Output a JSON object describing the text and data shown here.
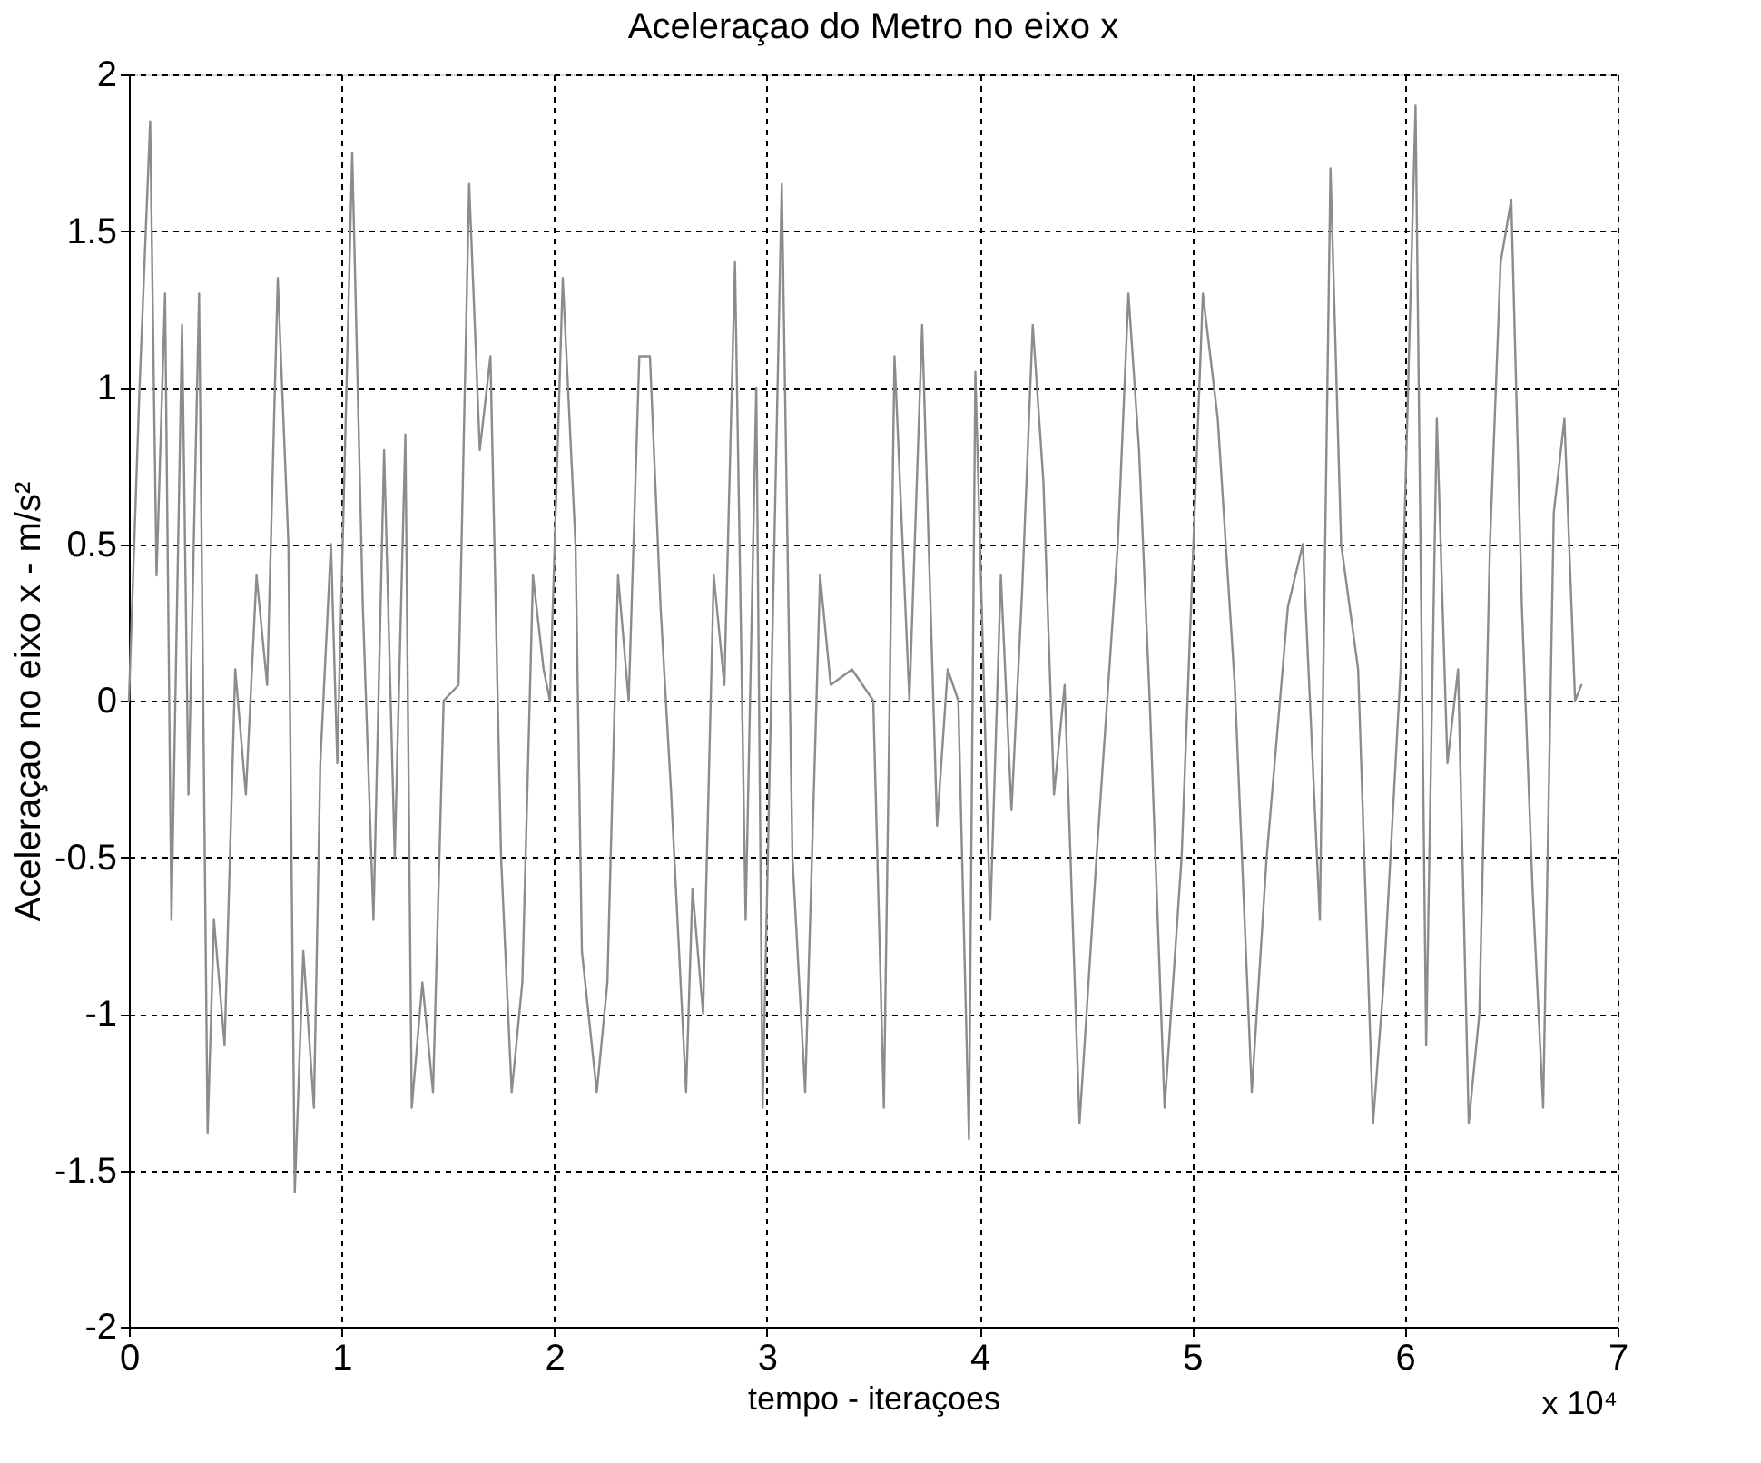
{
  "chart_data": {
    "type": "line",
    "title": "Aceleraçao do Metro no eixo x",
    "xlabel": "tempo - iteraçoes",
    "ylabel": "Aceleraçao no eixo x - m/s²",
    "annotations": [
      "x 10⁴"
    ],
    "series": [
      {
        "color": "#8c8c8c",
        "x": [
          0,
          0.05,
          0.1,
          0.13,
          0.17,
          0.2,
          0.25,
          0.28,
          0.33,
          0.37,
          0.4,
          0.45,
          0.5,
          0.55,
          0.6,
          0.65,
          0.7,
          0.75,
          0.78,
          0.82,
          0.87,
          0.9,
          0.95,
          0.98,
          1.05,
          1.1,
          1.15,
          1.2,
          1.25,
          1.3,
          1.33,
          1.38,
          1.43,
          1.48,
          1.55,
          1.6,
          1.65,
          1.7,
          1.75,
          1.8,
          1.85,
          1.9,
          1.95,
          1.98,
          2.04,
          2.1,
          2.13,
          2.2,
          2.25,
          2.3,
          2.35,
          2.4,
          2.45,
          2.5,
          2.55,
          2.62,
          2.65,
          2.7,
          2.75,
          2.8,
          2.85,
          2.9,
          2.95,
          2.98,
          3.07,
          3.12,
          3.18,
          3.25,
          3.3,
          3.4,
          3.5,
          3.55,
          3.6,
          3.67,
          3.73,
          3.8,
          3.85,
          3.9,
          3.95,
          3.98,
          4.05,
          4.1,
          4.15,
          4.2,
          4.25,
          4.3,
          4.35,
          4.4,
          4.47,
          4.55,
          4.65,
          4.7,
          4.75,
          4.8,
          4.87,
          4.95,
          5.05,
          5.12,
          5.2,
          5.28,
          5.35,
          5.45,
          5.52,
          5.6,
          5.65,
          5.7,
          5.78,
          5.85,
          5.9,
          5.98,
          6.05,
          6.1,
          6.15,
          6.2,
          6.25,
          6.3,
          6.35,
          6.4,
          6.45,
          6.5,
          6.55,
          6.6,
          6.65,
          6.7,
          6.75,
          6.8,
          6.83
        ],
        "values": [
          0,
          1.0,
          1.85,
          0.4,
          1.3,
          -0.7,
          1.2,
          -0.3,
          1.3,
          -1.38,
          -0.7,
          -1.1,
          0.1,
          -0.3,
          0.4,
          0.05,
          1.35,
          0.5,
          -1.57,
          -0.8,
          -1.3,
          -0.2,
          0.5,
          -0.2,
          1.75,
          0.3,
          -0.7,
          0.8,
          -0.5,
          0.85,
          -1.3,
          -0.9,
          -1.25,
          0,
          0.05,
          1.65,
          0.8,
          1.1,
          -0.5,
          -1.25,
          -0.9,
          0.4,
          0.1,
          0,
          1.35,
          0.5,
          -0.8,
          -1.25,
          -0.9,
          0.4,
          0,
          1.1,
          1.1,
          0.3,
          -0.3,
          -1.25,
          -0.6,
          -1.0,
          0.4,
          0.05,
          1.4,
          -0.7,
          1.0,
          -1.3,
          1.65,
          -0.5,
          -1.25,
          0.4,
          0.05,
          0.1,
          0,
          -1.3,
          1.1,
          0,
          1.2,
          -0.4,
          0.1,
          0,
          -1.4,
          1.05,
          -0.7,
          0.4,
          -0.35,
          0.35,
          1.2,
          0.7,
          -0.3,
          0.05,
          -1.35,
          -0.5,
          0.5,
          1.3,
          0.8,
          0,
          -1.3,
          -0.5,
          1.3,
          0.9,
          0.05,
          -1.25,
          -0.5,
          0.3,
          0.5,
          -0.7,
          1.7,
          0.5,
          0.1,
          -1.35,
          -0.9,
          0.1,
          1.9,
          -1.1,
          0.9,
          -0.2,
          0.1,
          -1.35,
          -1.0,
          0.5,
          1.4,
          1.6,
          0.3,
          -0.6,
          -1.3,
          0.6,
          0.9,
          0,
          0.05
        ]
      }
    ],
    "xlim": [
      0,
      7
    ],
    "xticks": [
      0,
      1,
      2,
      3,
      4,
      5,
      6,
      7
    ],
    "ylim": [
      -2,
      2
    ],
    "yticks": [
      -2,
      -1.5,
      -1,
      -0.5,
      0,
      0.5,
      1,
      1.5,
      2
    ],
    "grid": true,
    "line_style": "solid",
    "marker": "none"
  }
}
